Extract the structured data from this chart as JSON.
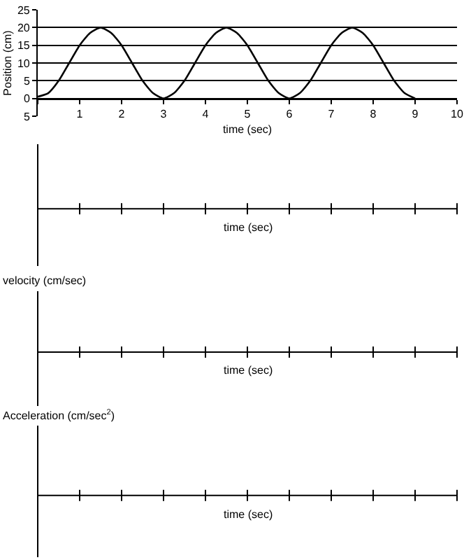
{
  "chart_data": [
    {
      "type": "line",
      "xlabel": "time (sec)",
      "ylabel": "Position (cm)",
      "x": [
        0,
        0.25,
        0.5,
        0.75,
        1,
        1.25,
        1.5,
        1.75,
        2,
        2.25,
        2.5,
        2.75,
        3,
        3.25,
        3.5,
        3.75,
        4,
        4.25,
        4.5,
        4.75,
        5,
        5.25,
        5.5,
        5.75,
        6,
        6.25,
        6.5,
        6.75,
        7,
        7.25,
        7.5,
        7.75,
        8,
        8.25,
        8.5,
        8.75,
        9
      ],
      "series": [
        {
          "color": "#000000",
          "values": [
            0.5,
            1.5,
            5,
            10,
            15,
            18.5,
            20,
            18.5,
            15,
            10,
            5,
            1.5,
            0,
            1.5,
            5,
            10,
            15,
            18.5,
            20,
            18.5,
            15,
            10,
            5,
            1.5,
            0,
            1.5,
            5,
            10,
            15,
            18.5,
            20,
            18.5,
            15,
            10,
            5,
            1.5,
            0
          ]
        }
      ],
      "xlim": [
        0,
        10
      ],
      "xticks": [
        {
          "value": 0,
          "label": null
        },
        1,
        2,
        3,
        4,
        5,
        6,
        7,
        8,
        9,
        10
      ],
      "ylim": [
        -5,
        25
      ],
      "yticks": [
        {
          "value": -5,
          "label": "5"
        },
        0,
        5,
        10,
        15,
        20,
        25
      ],
      "grid": "y",
      "marker": "none",
      "line_style": "solid"
    },
    {
      "type": "other",
      "xlabel": "time (sec)"
    },
    {
      "type": "other",
      "xlabel": "time (sec)",
      "ylabel": "velocity (cm/sec)"
    },
    {
      "type": "other",
      "xlabel": "time (sec)",
      "ylabel": "Acceleration (cm/sec$^{2}$)"
    }
  ]
}
